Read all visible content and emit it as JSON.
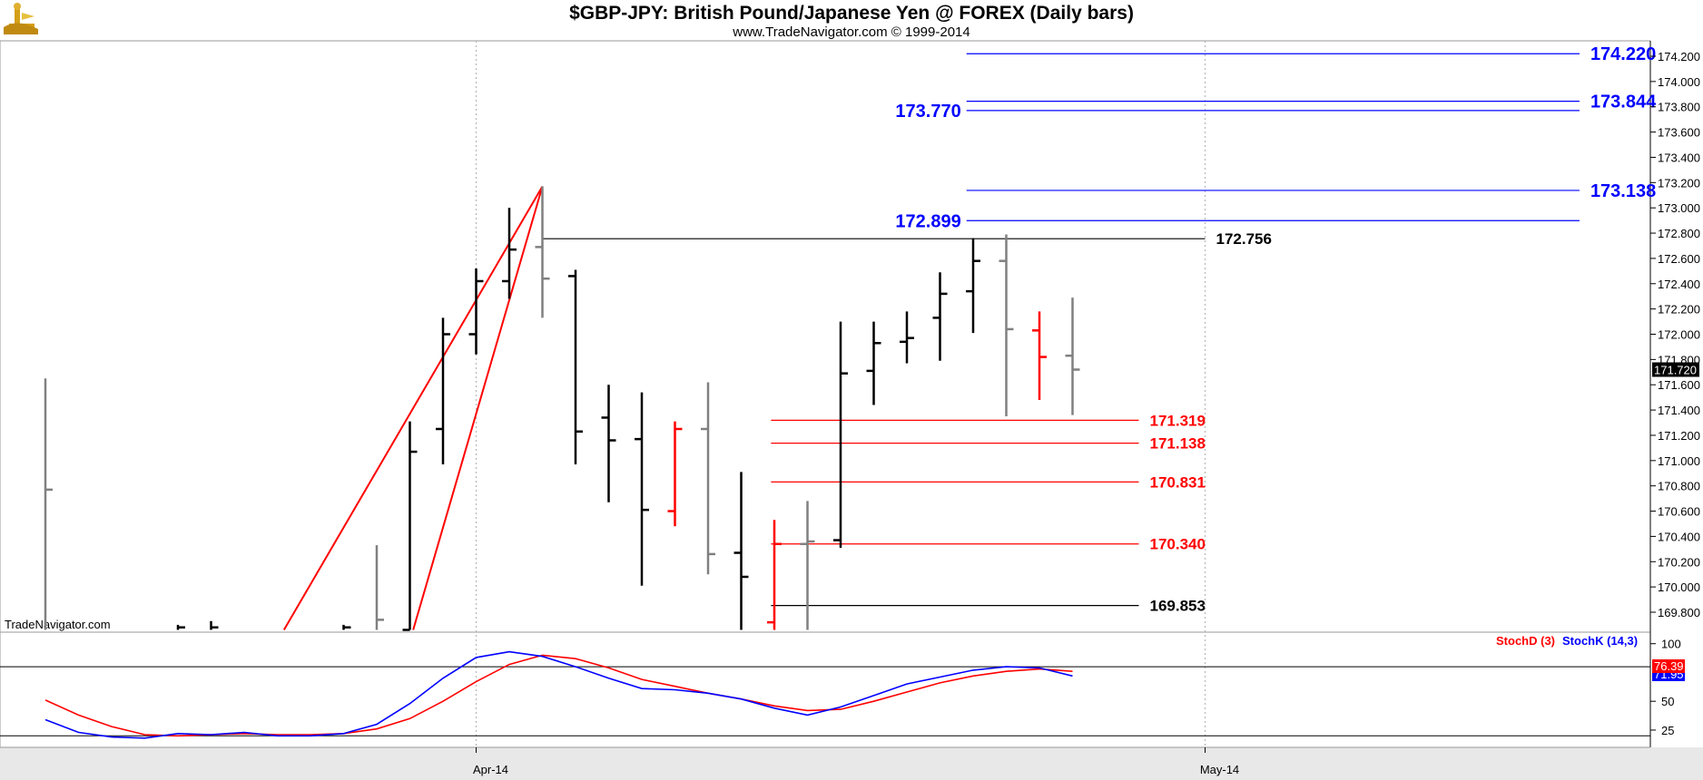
{
  "title": "$GBP-JPY:  British Pound/Japanese Yen @ FOREX  (Daily bars)",
  "subtitle": "www.TradeNavigator.com © 1999-2014",
  "watermark": "TradeNavigator.com",
  "colors": {
    "black": "#000000",
    "gray": "#808080",
    "red": "#ff0000",
    "blue": "#0000ff",
    "logo": "#d4a017"
  },
  "chart_data": [
    {
      "type": "ohlc",
      "title": "$GBP-JPY:  British Pound/Japanese Yen @ FOREX  (Daily bars)",
      "ylim": [
        169.66,
        174.3
      ],
      "y_ticks": [
        "174.200",
        "174.000",
        "173.800",
        "173.600",
        "173.400",
        "173.200",
        "173.000",
        "172.800",
        "172.600",
        "172.400",
        "172.200",
        "172.000",
        "171.800",
        "171.600",
        "171.400",
        "171.200",
        "171.000",
        "170.800",
        "170.600",
        "170.400",
        "170.200",
        "170.000",
        "169.800"
      ],
      "x_ticks": [
        {
          "label": "Apr-14",
          "index": 13
        },
        {
          "label": "May-14",
          "index": 35
        }
      ],
      "last_price": "171.720",
      "bars": [
        {
          "i": 0,
          "o": null,
          "h": 171.65,
          "l": 169.66,
          "c": 170.77,
          "color": "gray"
        },
        {
          "i": 4,
          "o": null,
          "h": 169.7,
          "l": 169.66,
          "c": 169.68,
          "color": "black"
        },
        {
          "i": 5,
          "o": null,
          "h": 169.73,
          "l": 169.66,
          "c": 169.68,
          "color": "black"
        },
        {
          "i": 9,
          "o": null,
          "h": 169.7,
          "l": 169.66,
          "c": 169.68,
          "color": "black"
        },
        {
          "i": 10,
          "o": null,
          "h": 170.33,
          "l": 169.66,
          "c": 169.74,
          "color": "gray"
        },
        {
          "i": 11,
          "o": 169.66,
          "h": 171.31,
          "l": 169.66,
          "c": 171.07,
          "color": "black"
        },
        {
          "i": 12,
          "o": 171.25,
          "h": 172.13,
          "l": 170.97,
          "c": 172.0,
          "color": "black"
        },
        {
          "i": 13,
          "o": 172.0,
          "h": 172.52,
          "l": 171.84,
          "c": 172.42,
          "color": "black"
        },
        {
          "i": 14,
          "o": 172.42,
          "h": 173.0,
          "l": 172.28,
          "c": 172.67,
          "color": "black"
        },
        {
          "i": 15,
          "o": 172.69,
          "h": 173.17,
          "l": 172.13,
          "c": 172.44,
          "color": "gray"
        },
        {
          "i": 16,
          "o": 172.46,
          "h": 172.51,
          "l": 170.97,
          "c": 171.23,
          "color": "black"
        },
        {
          "i": 17,
          "o": 171.34,
          "h": 171.6,
          "l": 170.67,
          "c": 171.16,
          "color": "black"
        },
        {
          "i": 18,
          "o": 171.17,
          "h": 171.54,
          "l": 170.01,
          "c": 170.61,
          "color": "black"
        },
        {
          "i": 19,
          "o": 170.6,
          "h": 171.31,
          "l": 170.48,
          "c": 171.25,
          "color": "red"
        },
        {
          "i": 20,
          "o": 171.25,
          "h": 171.62,
          "l": 170.1,
          "c": 170.26,
          "color": "gray"
        },
        {
          "i": 21,
          "o": 170.27,
          "h": 170.91,
          "l": 169.66,
          "c": 170.08,
          "color": "black"
        },
        {
          "i": 22,
          "o": 169.72,
          "h": 170.53,
          "l": 169.66,
          "c": 170.34,
          "color": "red"
        },
        {
          "i": 23,
          "o": 170.34,
          "h": 170.68,
          "l": 169.66,
          "c": 170.36,
          "color": "gray"
        },
        {
          "i": 24,
          "o": 170.37,
          "h": 172.1,
          "l": 170.31,
          "c": 171.69,
          "color": "black"
        },
        {
          "i": 25,
          "o": 171.71,
          "h": 172.1,
          "l": 171.44,
          "c": 171.93,
          "color": "black"
        },
        {
          "i": 26,
          "o": 171.94,
          "h": 172.18,
          "l": 171.77,
          "c": 171.97,
          "color": "black"
        },
        {
          "i": 27,
          "o": 172.13,
          "h": 172.49,
          "l": 171.79,
          "c": 172.32,
          "color": "black"
        },
        {
          "i": 28,
          "o": 172.34,
          "h": 172.76,
          "l": 172.01,
          "c": 172.58,
          "color": "black"
        },
        {
          "i": 29,
          "o": 172.58,
          "h": 172.79,
          "l": 171.35,
          "c": 172.04,
          "color": "gray"
        },
        {
          "i": 30,
          "o": 172.03,
          "h": 172.18,
          "l": 171.48,
          "c": 171.82,
          "color": "red"
        },
        {
          "i": 31,
          "o": 171.83,
          "h": 172.29,
          "l": 171.36,
          "c": 171.72,
          "color": "gray"
        }
      ],
      "trendlines": [
        {
          "from": {
            "i": 7.2,
            "y": 169.66
          },
          "to": {
            "i": 15,
            "y": 173.17
          },
          "color": "red"
        },
        {
          "from": {
            "i": 11.1,
            "y": 169.66
          },
          "to": {
            "i": 15,
            "y": 173.17
          },
          "color": "red"
        }
      ],
      "levels": [
        {
          "value": 174.22,
          "label": "174.220",
          "color": "blue",
          "from_i": 27.8,
          "to_i": 46.3,
          "label_side": "right"
        },
        {
          "value": 173.844,
          "label": "173.844",
          "color": "blue",
          "from_i": 27.8,
          "to_i": 46.3,
          "label_side": "right"
        },
        {
          "value": 173.77,
          "label": "173.770",
          "color": "blue",
          "from_i": 27.8,
          "to_i": 46.3,
          "label_side": "left"
        },
        {
          "value": 173.138,
          "label": "173.138",
          "color": "blue",
          "from_i": 27.8,
          "to_i": 46.3,
          "label_side": "right"
        },
        {
          "value": 172.899,
          "label": "172.899",
          "color": "blue",
          "from_i": 27.8,
          "to_i": 46.3,
          "label_side": "left"
        },
        {
          "value": 172.756,
          "label": "172.756",
          "color": "black",
          "from_i": 15,
          "to_i": 35,
          "label_side": "right"
        },
        {
          "value": 171.319,
          "label": "171.319",
          "color": "red",
          "from_i": 21.9,
          "to_i": 33,
          "label_side": "right"
        },
        {
          "value": 171.138,
          "label": "171.138",
          "color": "red",
          "from_i": 21.9,
          "to_i": 33,
          "label_side": "right"
        },
        {
          "value": 170.831,
          "label": "170.831",
          "color": "red",
          "from_i": 21.9,
          "to_i": 33,
          "label_side": "right"
        },
        {
          "value": 170.34,
          "label": "170.340",
          "color": "red",
          "from_i": 21.9,
          "to_i": 33,
          "label_side": "right"
        },
        {
          "value": 169.853,
          "label": "169.853",
          "color": "black",
          "from_i": 21.9,
          "to_i": 33,
          "label_side": "right"
        }
      ]
    },
    {
      "type": "line",
      "ylim": [
        10,
        110
      ],
      "y_ticks": [
        "100",
        "50",
        "25"
      ],
      "reference_lines": [
        80,
        20
      ],
      "legend": [
        "StochD (3)",
        "StochK (14,3)"
      ],
      "series": [
        {
          "name": "StochD (3)",
          "color": "red",
          "last": "76.39",
          "points": [
            [
              0,
              51
            ],
            [
              1,
              38
            ],
            [
              2,
              28
            ],
            [
              3,
              21
            ],
            [
              4,
              20
            ],
            [
              5,
              21
            ],
            [
              6,
              22
            ],
            [
              7,
              21
            ],
            [
              8,
              21
            ],
            [
              9,
              22
            ],
            [
              10,
              26
            ],
            [
              11,
              35
            ],
            [
              12,
              50
            ],
            [
              13,
              67
            ],
            [
              14,
              82
            ],
            [
              15,
              90
            ],
            [
              16,
              87
            ],
            [
              17,
              79
            ],
            [
              18,
              69
            ],
            [
              19,
              63
            ],
            [
              20,
              57
            ],
            [
              21,
              52
            ],
            [
              22,
              46
            ],
            [
              23,
              42
            ],
            [
              24,
              43
            ],
            [
              25,
              50
            ],
            [
              26,
              58
            ],
            [
              27,
              66
            ],
            [
              28,
              72
            ],
            [
              29,
              76
            ],
            [
              30,
              78
            ],
            [
              31,
              76
            ]
          ]
        },
        {
          "name": "StochK (14,3)",
          "color": "blue",
          "last": "71.95",
          "points": [
            [
              0,
              34
            ],
            [
              1,
              23
            ],
            [
              2,
              19
            ],
            [
              3,
              18
            ],
            [
              4,
              22
            ],
            [
              5,
              21
            ],
            [
              6,
              23
            ],
            [
              7,
              20
            ],
            [
              8,
              20
            ],
            [
              9,
              22
            ],
            [
              10,
              30
            ],
            [
              11,
              48
            ],
            [
              12,
              70
            ],
            [
              13,
              88
            ],
            [
              14,
              93
            ],
            [
              15,
              89
            ],
            [
              16,
              80
            ],
            [
              17,
              70
            ],
            [
              18,
              61
            ],
            [
              19,
              60
            ],
            [
              20,
              57
            ],
            [
              21,
              52
            ],
            [
              22,
              44
            ],
            [
              23,
              38
            ],
            [
              24,
              45
            ],
            [
              25,
              55
            ],
            [
              26,
              65
            ],
            [
              27,
              71
            ],
            [
              28,
              77
            ],
            [
              29,
              80
            ],
            [
              30,
              79
            ],
            [
              31,
              72
            ]
          ]
        }
      ]
    }
  ]
}
